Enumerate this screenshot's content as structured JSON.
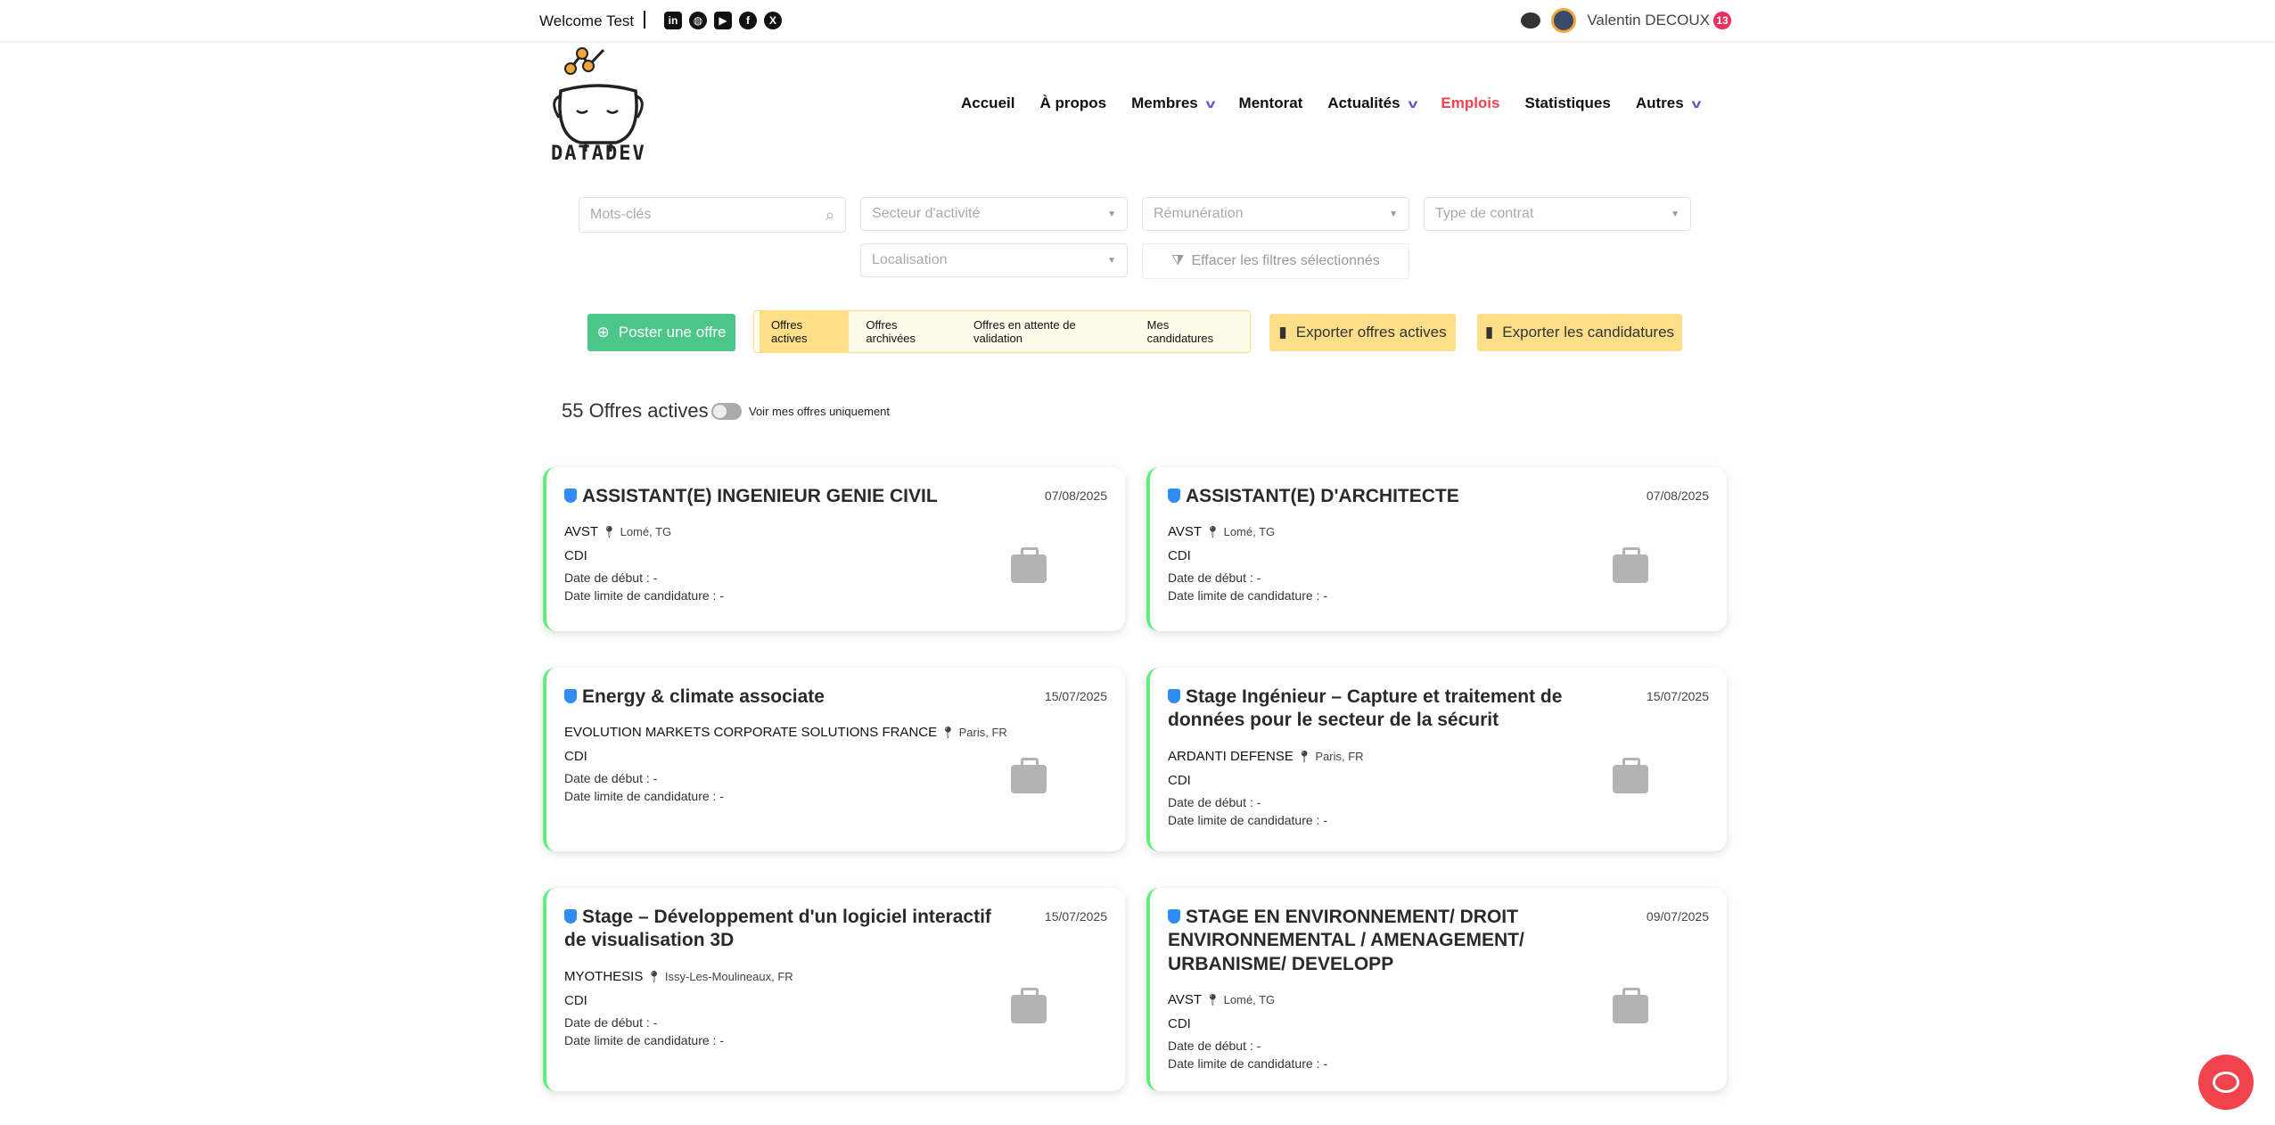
{
  "topbar": {
    "welcome": "Welcome Test",
    "social": [
      "linkedin-icon",
      "globe-icon",
      "youtube-icon",
      "facebook-icon",
      "x-icon"
    ],
    "user_name": "Valentin DECOUX",
    "notification_count": "13"
  },
  "logo": {
    "text": "DATADEV"
  },
  "nav": {
    "items": [
      {
        "label": "Accueil"
      },
      {
        "label": "À propos"
      },
      {
        "label": "Membres",
        "dropdown": true
      },
      {
        "label": "Mentorat"
      },
      {
        "label": "Actualités",
        "dropdown": true
      },
      {
        "label": "Emplois",
        "active": true
      },
      {
        "label": "Statistiques"
      },
      {
        "label": "Autres",
        "dropdown": true
      }
    ]
  },
  "filters": {
    "keywords_placeholder": "Mots-clés",
    "sector": "Secteur d'activité",
    "salary": "Rémunération",
    "contract": "Type de contrat",
    "location": "Localisation",
    "clear": "Effacer les filtres sélectionnés"
  },
  "actions": {
    "post": "Poster une offre",
    "tabs": [
      "Offres actives",
      "Offres archivées",
      "Offres en attente de validation",
      "Mes candidatures"
    ],
    "export_active": "Exporter offres actives",
    "export_applications": "Exporter les candidatures"
  },
  "summary": {
    "count": "55 Offres actives",
    "toggle_label": "Voir mes offres uniquement",
    "toggle_on": false
  },
  "colors": {
    "accent": "#f0434b",
    "green": "#4cc78a",
    "yellow": "#fddf89",
    "card_border": "#5ef07a"
  },
  "jobs": [
    {
      "title": "ASSISTANT(E) INGENIEUR GENIE CIVIL",
      "date": "07/08/2025",
      "company": "AVST",
      "location": "Lomé, TG",
      "type": "CDI",
      "start": "Date de début : -",
      "deadline": "Date limite de candidature : -"
    },
    {
      "title": "ASSISTANT(E) D'ARCHITECTE",
      "date": "07/08/2025",
      "company": "AVST",
      "location": "Lomé, TG",
      "type": "CDI",
      "start": "Date de début : -",
      "deadline": "Date limite de candidature : -"
    },
    {
      "title": "Energy & climate associate",
      "date": "15/07/2025",
      "company": "EVOLUTION MARKETS CORPORATE SOLUTIONS FRANCE",
      "location": "Paris, FR",
      "type": "CDI",
      "start": "Date de début : -",
      "deadline": "Date limite de candidature : -"
    },
    {
      "title": "Stage Ingénieur – Capture et traitement de données pour le secteur de la sécurit",
      "date": "15/07/2025",
      "company": "ARDANTI DEFENSE",
      "location": "Paris, FR",
      "type": "CDI",
      "start": "Date de début : -",
      "deadline": "Date limite de candidature : -"
    },
    {
      "title": "Stage – Développement d'un logiciel interactif de visualisation 3D",
      "date": "15/07/2025",
      "company": "MYOTHESIS",
      "location": "Issy-Les-Moulineaux, FR",
      "type": "CDI",
      "start": "Date de début : -",
      "deadline": "Date limite de candidature : -"
    },
    {
      "title": "STAGE EN ENVIRONNEMENT/ DROIT ENVIRONNEMENTAL / AMENAGEMENT/ URBANISME/ DEVELOPP",
      "date": "09/07/2025",
      "company": "AVST",
      "location": "Lomé, TG",
      "type": "CDI",
      "start": "Date de début : -",
      "deadline": "Date limite de candidature : -"
    }
  ]
}
